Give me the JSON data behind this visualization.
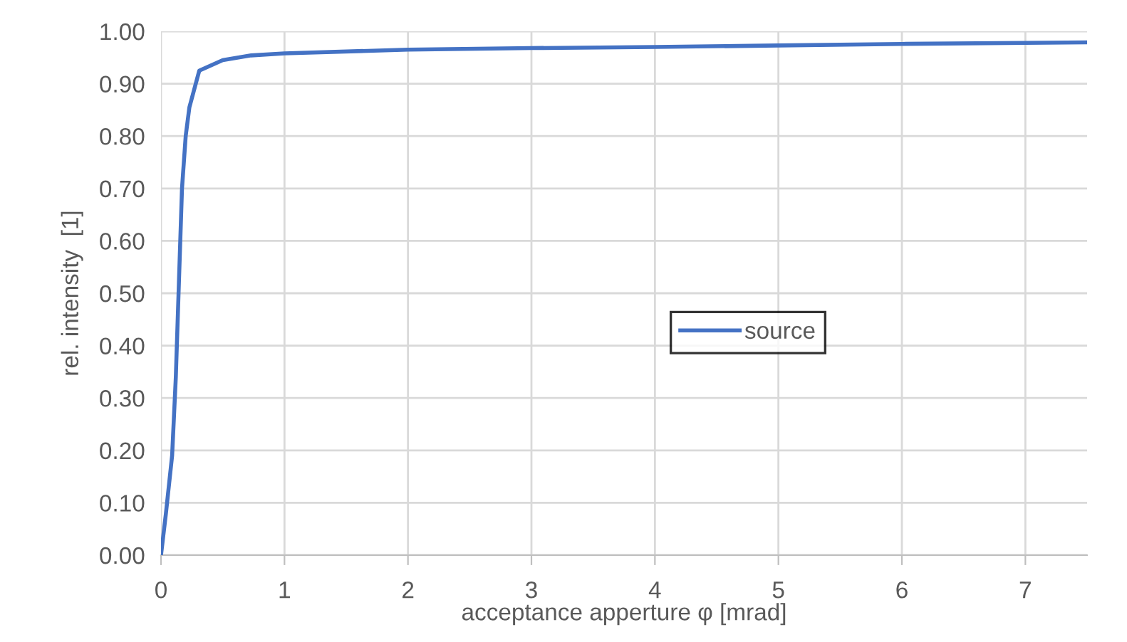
{
  "chart_data": {
    "type": "line",
    "xlabel": "acceptance apperture φ [mrad]",
    "ylabel": "rel. intensity  [1]",
    "series": [
      {
        "name": "source",
        "color": "#4472c4",
        "x": [
          0,
          0.04,
          0.09,
          0.12,
          0.145,
          0.17,
          0.2,
          0.23,
          0.31,
          0.5,
          0.73,
          1.0,
          2.0,
          3.0,
          4.0,
          5.0,
          6.0,
          7.0,
          7.5
        ],
        "values": [
          0,
          0.08,
          0.19,
          0.34,
          0.52,
          0.7,
          0.8,
          0.855,
          0.925,
          0.945,
          0.954,
          0.958,
          0.965,
          0.968,
          0.97,
          0.973,
          0.976,
          0.978,
          0.979
        ]
      }
    ],
    "xlim": [
      0,
      7.5
    ],
    "xticks": [
      0,
      1,
      2,
      3,
      4,
      5,
      6,
      7
    ],
    "ylim": [
      0,
      1
    ],
    "yticks": [
      {
        "value": 0,
        "label": "0.00"
      },
      {
        "value": 0.1,
        "label": "0.10"
      },
      {
        "value": 0.2,
        "label": "0.20"
      },
      {
        "value": 0.3,
        "label": "0.30"
      },
      {
        "value": 0.4,
        "label": "0.40"
      },
      {
        "value": 0.5,
        "label": "0.50"
      },
      {
        "value": 0.6,
        "label": "0.60"
      },
      {
        "value": 0.7,
        "label": "0.70"
      },
      {
        "value": 0.8,
        "label": "0.80"
      },
      {
        "value": 0.9,
        "label": "0.90"
      },
      {
        "value": 1,
        "label": "1.00"
      }
    ],
    "grid": true,
    "legend": "center right",
    "marker": "none",
    "line_style": "solid"
  }
}
